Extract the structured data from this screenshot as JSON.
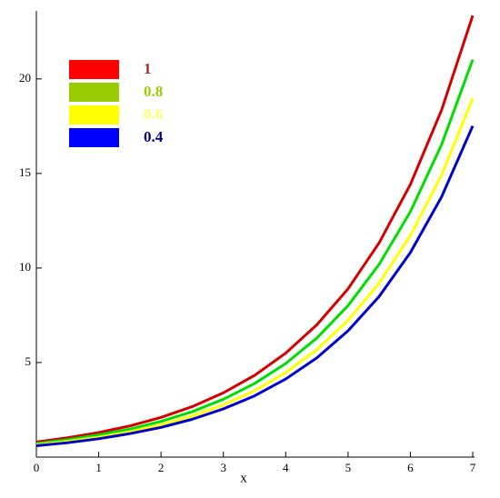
{
  "chart_data": {
    "type": "line",
    "x_label": "x",
    "x": [
      0,
      0.5,
      1,
      1.5,
      2,
      2.5,
      3,
      3.5,
      4,
      4.5,
      5,
      5.5,
      6,
      6.5,
      7
    ],
    "series": [
      {
        "name": "1",
        "color": "#d40000",
        "legend_color": "#ff0000",
        "label_color": "#a52a2a",
        "values": [
          0.8,
          1.02,
          1.3,
          1.65,
          2.1,
          2.67,
          3.4,
          4.32,
          5.5,
          7.0,
          8.9,
          11.34,
          14.42,
          18.35,
          23.35
        ]
      },
      {
        "name": "0.8",
        "color": "#00dd00",
        "legend_color": "#99cc00",
        "label_color": "#99cc00",
        "values": [
          0.72,
          0.92,
          1.17,
          1.48,
          1.89,
          2.4,
          3.06,
          3.89,
          4.95,
          6.3,
          8.01,
          10.2,
          12.98,
          16.52,
          21.02
        ]
      },
      {
        "name": "0.6",
        "color": "#ffff00",
        "legend_color": "#ffff00",
        "label_color": "#ffff66",
        "values": [
          0.65,
          0.83,
          1.05,
          1.34,
          1.7,
          2.17,
          2.76,
          3.51,
          4.47,
          5.69,
          7.23,
          9.21,
          11.72,
          14.91,
          18.97
        ]
      },
      {
        "name": "0.4",
        "color": "#0000cc",
        "legend_color": "#0000ff",
        "label_color": "#000080",
        "values": [
          0.6,
          0.76,
          0.97,
          1.24,
          1.57,
          2.0,
          2.55,
          3.24,
          4.13,
          5.25,
          6.68,
          8.5,
          10.82,
          13.76,
          17.51
        ]
      }
    ],
    "xlim": [
      0,
      7
    ],
    "xticks": [
      0,
      1,
      2,
      3,
      4,
      5,
      6,
      7
    ],
    "ylim": [
      0,
      23.5
    ],
    "yticks": [
      5,
      10,
      15,
      20
    ],
    "grid": false,
    "legend": "upper left"
  }
}
